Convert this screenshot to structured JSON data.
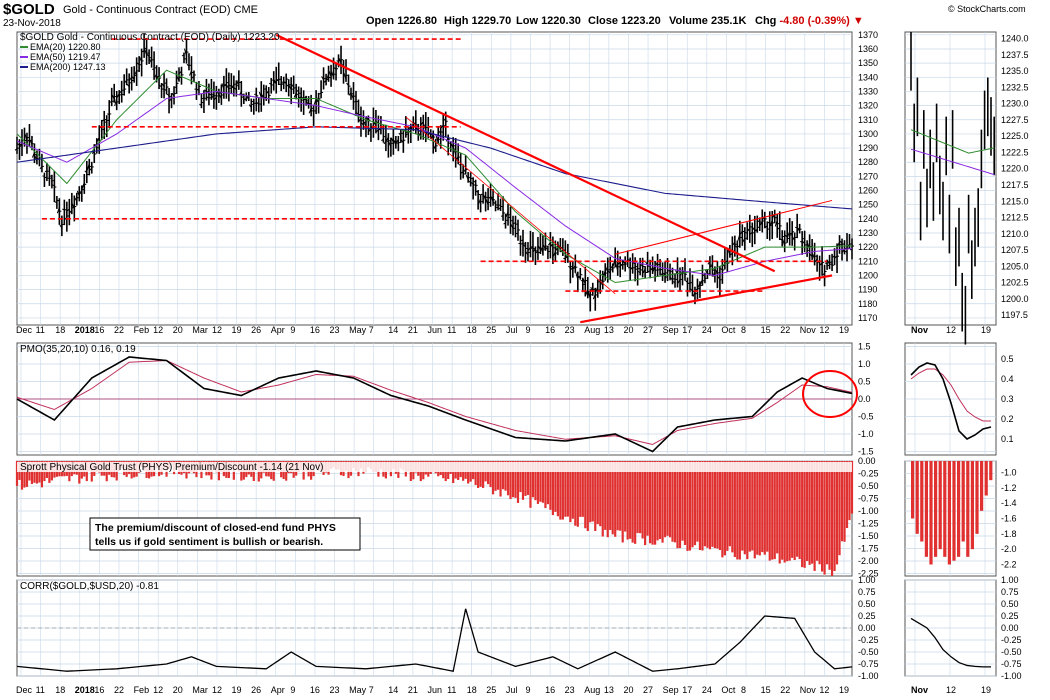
{
  "header": {
    "ticker": "$GOLD",
    "name": "Gold - Continuous Contract (EOD)",
    "exchange": "CME",
    "date": "23-Nov-2018",
    "open_label": "Open",
    "open": "1226.80",
    "high_label": "High",
    "high": "1229.70",
    "low_label": "Low",
    "low": "1220.30",
    "close_label": "Close",
    "close": "1223.20",
    "volume_label": "Volume",
    "volume": "235.1K",
    "chg_label": "Chg",
    "chg": "-4.80 (-0.39%)"
  },
  "copyright": "© StockCharts.com",
  "colors": {
    "price": "#000000",
    "ema20": "#2e8b2e",
    "ema50": "#8a2be2",
    "ema200": "#1c1c8c",
    "trend": "#ff0000",
    "bars": "#e03030",
    "pmo_signal": "#c0305a",
    "grid": "#c8d8e8"
  },
  "chart_data": [
    {
      "type": "line",
      "panel": "price",
      "title": "$GOLD Gold - Continuous Contract (EOD) (Daily) 1223.20",
      "legend": [
        "EMA(20) 1220.80",
        "EMA(50) 1219.47",
        "EMA(200) 1247.13"
      ],
      "ylim": [
        1165,
        1372
      ],
      "y_ticks": [
        1170,
        1180,
        1190,
        1200,
        1210,
        1220,
        1230,
        1240,
        1250,
        1260,
        1270,
        1280,
        1290,
        1300,
        1310,
        1320,
        1330,
        1340,
        1350,
        1360,
        1370
      ],
      "x_labels": [
        "Dec",
        "11",
        "18",
        "2018",
        "16",
        "22",
        "Feb",
        "12",
        "20",
        "Mar",
        "12",
        "19",
        "26",
        "Apr",
        "9",
        "16",
        "23",
        "May",
        "7",
        "14",
        "21",
        "Jun",
        "11",
        "18",
        "25",
        "Jul",
        "9",
        "16",
        "23",
        "Aug",
        "13",
        "20",
        "27",
        "Sep",
        "17",
        "24",
        "Oct",
        "8",
        "15",
        "22",
        "Nov",
        "12",
        "19"
      ],
      "price_anchors": [
        [
          0,
          1290
        ],
        [
          4,
          1300
        ],
        [
          10,
          1275
        ],
        [
          14,
          1265
        ],
        [
          18,
          1240
        ],
        [
          24,
          1255
        ],
        [
          30,
          1280
        ],
        [
          38,
          1320
        ],
        [
          44,
          1335
        ],
        [
          52,
          1360
        ],
        [
          56,
          1340
        ],
        [
          62,
          1325
        ],
        [
          68,
          1355
        ],
        [
          74,
          1325
        ],
        [
          80,
          1330
        ],
        [
          88,
          1335
        ],
        [
          94,
          1320
        ],
        [
          100,
          1330
        ],
        [
          108,
          1340
        ],
        [
          114,
          1325
        ],
        [
          118,
          1315
        ],
        [
          124,
          1340
        ],
        [
          130,
          1350
        ],
        [
          136,
          1320
        ],
        [
          140,
          1305
        ],
        [
          144,
          1310
        ],
        [
          150,
          1290
        ],
        [
          156,
          1300
        ],
        [
          162,
          1305
        ],
        [
          168,
          1295
        ],
        [
          172,
          1305
        ],
        [
          176,
          1285
        ],
        [
          182,
          1265
        ],
        [
          186,
          1255
        ],
        [
          192,
          1250
        ],
        [
          198,
          1238
        ],
        [
          204,
          1222
        ],
        [
          208,
          1215
        ],
        [
          214,
          1220
        ],
        [
          220,
          1215
        ],
        [
          226,
          1200
        ],
        [
          230,
          1185
        ],
        [
          234,
          1195
        ],
        [
          238,
          1205
        ],
        [
          244,
          1210
        ],
        [
          250,
          1205
        ],
        [
          256,
          1205
        ],
        [
          262,
          1200
        ],
        [
          268,
          1200
        ],
        [
          272,
          1190
        ],
        [
          278,
          1205
        ],
        [
          282,
          1200
        ],
        [
          286,
          1215
        ],
        [
          292,
          1230
        ],
        [
          298,
          1235
        ],
        [
          304,
          1238
        ],
        [
          308,
          1225
        ],
        [
          314,
          1230
        ],
        [
          318,
          1218
        ],
        [
          322,
          1205
        ],
        [
          326,
          1208
        ],
        [
          330,
          1220
        ],
        [
          335,
          1223
        ]
      ],
      "ema20_anchors": [
        [
          0,
          1300
        ],
        [
          20,
          1265
        ],
        [
          40,
          1310
        ],
        [
          60,
          1345
        ],
        [
          80,
          1330
        ],
        [
          100,
          1325
        ],
        [
          120,
          1325
        ],
        [
          140,
          1310
        ],
        [
          160,
          1300
        ],
        [
          180,
          1285
        ],
        [
          200,
          1245
        ],
        [
          220,
          1215
        ],
        [
          240,
          1195
        ],
        [
          260,
          1200
        ],
        [
          280,
          1205
        ],
        [
          300,
          1220
        ],
        [
          320,
          1220
        ],
        [
          335,
          1221
        ]
      ],
      "ema50_anchors": [
        [
          0,
          1295
        ],
        [
          20,
          1280
        ],
        [
          40,
          1300
        ],
        [
          60,
          1325
        ],
        [
          80,
          1330
        ],
        [
          100,
          1325
        ],
        [
          120,
          1320
        ],
        [
          140,
          1312
        ],
        [
          160,
          1305
        ],
        [
          180,
          1290
        ],
        [
          200,
          1262
        ],
        [
          220,
          1235
        ],
        [
          240,
          1212
        ],
        [
          260,
          1205
        ],
        [
          280,
          1200
        ],
        [
          300,
          1210
        ],
        [
          320,
          1217
        ],
        [
          335,
          1219
        ]
      ],
      "ema200_anchors": [
        [
          0,
          1280
        ],
        [
          40,
          1290
        ],
        [
          80,
          1300
        ],
        [
          120,
          1305
        ],
        [
          160,
          1303
        ],
        [
          190,
          1290
        ],
        [
          220,
          1272
        ],
        [
          260,
          1258
        ],
        [
          300,
          1252
        ],
        [
          335,
          1247
        ]
      ],
      "levels": [
        1367,
        1305,
        1240,
        1210,
        1189
      ],
      "trendlines": [
        "resistance-from-apr",
        "support-from-aug",
        "channel-upper"
      ]
    },
    {
      "type": "line",
      "panel": "pmo",
      "title": "PMO(35,20,10) 0.16, 0.19",
      "ylim": [
        -1.6,
        1.6
      ],
      "y_ticks": [
        1.5,
        1.0,
        0.5,
        0.0,
        -0.5,
        -1.0,
        -1.5
      ],
      "pmo": [
        [
          0,
          0.0
        ],
        [
          15,
          -0.6
        ],
        [
          30,
          0.6
        ],
        [
          45,
          1.2
        ],
        [
          60,
          1.1
        ],
        [
          75,
          0.3
        ],
        [
          90,
          0.1
        ],
        [
          105,
          0.6
        ],
        [
          120,
          0.8
        ],
        [
          135,
          0.6
        ],
        [
          150,
          0.1
        ],
        [
          165,
          -0.2
        ],
        [
          180,
          -0.6
        ],
        [
          200,
          -1.1
        ],
        [
          220,
          -1.2
        ],
        [
          240,
          -1.0
        ],
        [
          255,
          -1.5
        ],
        [
          265,
          -0.8
        ],
        [
          280,
          -0.6
        ],
        [
          295,
          -0.5
        ],
        [
          305,
          0.2
        ],
        [
          315,
          0.6
        ],
        [
          325,
          0.3
        ],
        [
          335,
          0.16
        ]
      ],
      "signal": [
        [
          0,
          0.05
        ],
        [
          15,
          -0.3
        ],
        [
          30,
          0.3
        ],
        [
          45,
          1.05
        ],
        [
          60,
          1.1
        ],
        [
          75,
          0.6
        ],
        [
          90,
          0.2
        ],
        [
          105,
          0.4
        ],
        [
          120,
          0.7
        ],
        [
          135,
          0.65
        ],
        [
          150,
          0.25
        ],
        [
          165,
          -0.1
        ],
        [
          180,
          -0.5
        ],
        [
          200,
          -0.9
        ],
        [
          220,
          -1.15
        ],
        [
          240,
          -1.05
        ],
        [
          255,
          -1.3
        ],
        [
          265,
          -0.9
        ],
        [
          280,
          -0.7
        ],
        [
          295,
          -0.55
        ],
        [
          305,
          -0.1
        ],
        [
          315,
          0.4
        ],
        [
          325,
          0.35
        ],
        [
          335,
          0.19
        ]
      ],
      "annotation": "circle-at-latest"
    },
    {
      "type": "bar",
      "panel": "phys",
      "title": "Sprott Physical Gold Trust (PHYS) Premium/Discount -1.14 (21 Nov)",
      "note": "The premium/discount of closed-end fund PHYS tells us if gold sentiment is bullish or bearish.",
      "ylim": [
        -2.3,
        0.0
      ],
      "y_ticks": [
        0.0,
        -0.25,
        -0.5,
        -0.75,
        -1.0,
        -1.25,
        -1.5,
        -1.75,
        -2.0,
        -2.25
      ],
      "anchors": [
        [
          0,
          -0.5
        ],
        [
          30,
          -0.3
        ],
        [
          60,
          -0.2
        ],
        [
          90,
          -0.3
        ],
        [
          120,
          -0.25
        ],
        [
          140,
          -0.2
        ],
        [
          160,
          -0.3
        ],
        [
          180,
          -0.4
        ],
        [
          200,
          -0.7
        ],
        [
          220,
          -1.1
        ],
        [
          240,
          -1.5
        ],
        [
          260,
          -1.6
        ],
        [
          280,
          -1.8
        ],
        [
          300,
          -1.9
        ],
        [
          320,
          -2.1
        ],
        [
          328,
          -2.2
        ],
        [
          335,
          -1.1
        ]
      ]
    },
    {
      "type": "line",
      "panel": "corr",
      "title": "CORR($GOLD,$USD,20) -0.81",
      "ylim": [
        -1.0,
        1.0
      ],
      "y_ticks": [
        1.0,
        0.75,
        0.5,
        0.25,
        0.0,
        -0.25,
        -0.5,
        -0.75,
        -1.0
      ],
      "anchors": [
        [
          0,
          -0.8
        ],
        [
          20,
          -0.9
        ],
        [
          40,
          -0.85
        ],
        [
          60,
          -0.75
        ],
        [
          70,
          -0.6
        ],
        [
          80,
          -0.8
        ],
        [
          100,
          -0.85
        ],
        [
          110,
          -0.5
        ],
        [
          120,
          -0.8
        ],
        [
          140,
          -0.85
        ],
        [
          160,
          -0.75
        ],
        [
          175,
          -0.9
        ],
        [
          180,
          0.4
        ],
        [
          185,
          -0.5
        ],
        [
          200,
          -0.8
        ],
        [
          215,
          -0.6
        ],
        [
          225,
          -0.85
        ],
        [
          240,
          -0.5
        ],
        [
          255,
          -0.9
        ],
        [
          265,
          -0.85
        ],
        [
          280,
          -0.75
        ],
        [
          290,
          -0.3
        ],
        [
          300,
          0.25
        ],
        [
          312,
          0.2
        ],
        [
          320,
          -0.5
        ],
        [
          328,
          -0.85
        ],
        [
          335,
          -0.81
        ]
      ]
    }
  ],
  "zoom_panel": {
    "x_labels": [
      "Nov",
      "12",
      "19"
    ],
    "price_ticks": [
      1240.0,
      1237.5,
      1235.0,
      1232.5,
      1230.0,
      1227.5,
      1225.0,
      1222.5,
      1220.0,
      1217.5,
      1215.0,
      1212.5,
      1210.0,
      1207.5,
      1205.0,
      1202.5,
      1200.0,
      1197.5
    ],
    "pmo_ticks": [
      0.5,
      0.4,
      0.3,
      0.2,
      0.1
    ],
    "phys_ticks": [
      -1.0,
      -1.2,
      -1.4,
      -1.6,
      -1.8,
      -2.0,
      -2.2
    ],
    "corr_ticks": [
      1.0,
      0.75,
      0.5,
      0.25,
      0.0,
      -0.25,
      -0.5,
      -0.75,
      -1.0
    ]
  }
}
